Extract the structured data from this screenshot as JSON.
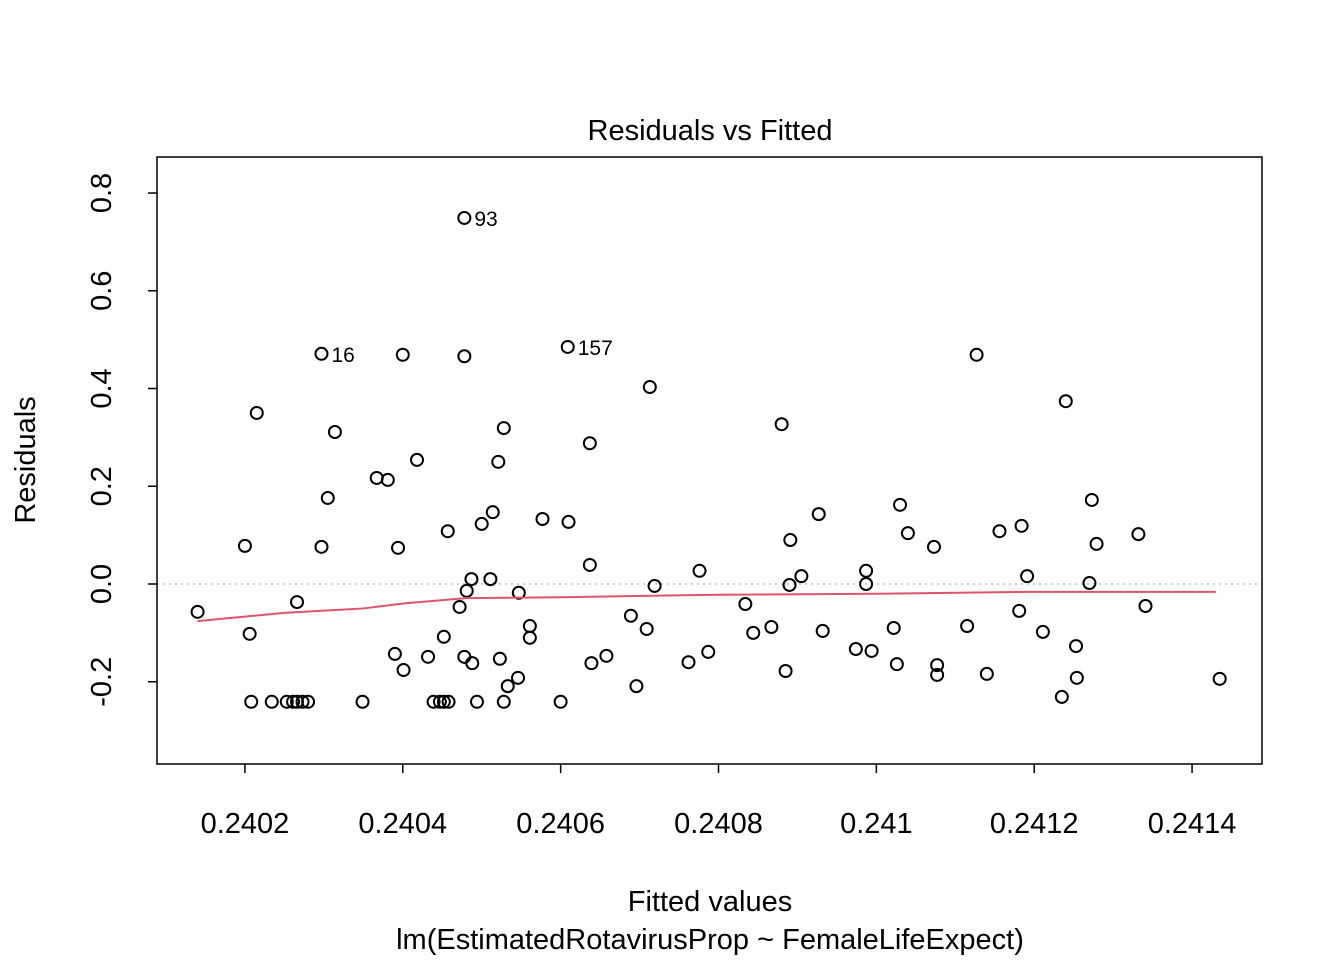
{
  "chart_data": {
    "type": "scatter",
    "title": "Residuals vs Fitted",
    "xlabel": "Fitted values",
    "subtitle": "lm(EstimatedRotavirusProp ~ FemaleLifeExpect)",
    "ylabel": "Residuals",
    "xlim": [
      0.2400886,
      0.2414886
    ],
    "ylim": [
      -0.3683,
      0.8737
    ],
    "xticks": [
      0.2402,
      0.2404,
      0.2406,
      0.2408,
      0.241,
      0.2412,
      0.2414
    ],
    "yticks": [
      -0.2,
      {
        "value": 0,
        "label": "0.0"
      },
      0.2,
      0.4,
      0.6,
      0.8
    ],
    "hline": 0,
    "hline_color": "#bebebe",
    "series": [
      {
        "type": "scatter",
        "color": "#000000",
        "x": [
          0.24014,
          0.2402,
          0.240206,
          0.240215,
          0.240208,
          0.240234,
          0.240253,
          0.240261,
          0.240266,
          0.240273,
          0.24028,
          0.240266,
          0.240297,
          0.240297,
          0.240305,
          0.240314,
          0.240349,
          0.240367,
          0.240381,
          0.24039,
          0.240394,
          0.2404,
          0.240401,
          0.240418,
          0.240432,
          0.240439,
          0.240447,
          0.240452,
          0.240458,
          0.240452,
          0.240457,
          0.240472,
          0.240478,
          0.240478,
          0.240478,
          0.240481,
          0.240487,
          0.240488,
          0.240494,
          0.2405,
          0.240511,
          0.240514,
          0.240521,
          0.240523,
          0.240528,
          0.240528,
          0.240533,
          0.240546,
          0.240547,
          0.240561,
          0.240561,
          0.240577,
          0.2406,
          0.240609,
          0.24061,
          0.240637,
          0.240637,
          0.240639,
          0.240658,
          0.240689,
          0.240696,
          0.240709,
          0.240713,
          0.240719,
          0.240762,
          0.240776,
          0.240787,
          0.240834,
          0.240844,
          0.240867,
          0.24088,
          0.240885,
          0.24089,
          0.240891,
          0.240905,
          0.240927,
          0.240932,
          0.240974,
          0.240987,
          0.240987,
          0.240994,
          0.241022,
          0.241026,
          0.24103,
          0.24104,
          0.241073,
          0.241077,
          0.241077,
          0.241115,
          0.241127,
          0.24114,
          0.241156,
          0.241181,
          0.241184,
          0.241191,
          0.241211,
          0.241235,
          0.24124,
          0.241253,
          0.241254,
          0.24127,
          0.241273,
          0.241279,
          0.241332,
          0.241341,
          0.241435
        ],
        "values": [
          -0.057,
          0.078,
          -0.102,
          0.35,
          -0.241,
          -0.241,
          -0.241,
          -0.241,
          -0.241,
          -0.241,
          -0.241,
          -0.037,
          0.471,
          0.076,
          0.176,
          0.311,
          -0.241,
          0.217,
          0.213,
          -0.143,
          0.074,
          0.469,
          -0.176,
          0.254,
          -0.149,
          -0.241,
          -0.241,
          -0.241,
          -0.241,
          -0.108,
          0.108,
          -0.047,
          0.749,
          0.466,
          -0.149,
          -0.014,
          0.01,
          -0.162,
          -0.241,
          0.123,
          0.01,
          0.147,
          0.25,
          -0.153,
          0.319,
          -0.241,
          -0.209,
          -0.192,
          -0.018,
          -0.086,
          -0.11,
          0.133,
          -0.241,
          0.485,
          0.127,
          0.288,
          0.039,
          -0.162,
          -0.147,
          -0.065,
          -0.209,
          -0.092,
          0.403,
          -0.004,
          -0.16,
          0.027,
          -0.139,
          -0.041,
          -0.1,
          -0.088,
          0.327,
          -0.178,
          -0.002,
          0.09,
          0.016,
          0.143,
          -0.096,
          -0.133,
          0.027,
          0,
          -0.137,
          -0.09,
          -0.164,
          0.162,
          0.104,
          0.076,
          -0.166,
          -0.186,
          -0.086,
          0.469,
          -0.184,
          0.108,
          -0.055,
          0.119,
          0.016,
          -0.098,
          -0.231,
          0.374,
          -0.127,
          -0.192,
          0.002,
          0.172,
          0.082,
          0.102,
          -0.045,
          -0.194
        ],
        "point_labels": [
          null,
          null,
          null,
          null,
          null,
          null,
          null,
          null,
          null,
          null,
          null,
          null,
          "16",
          null,
          null,
          null,
          null,
          null,
          null,
          null,
          null,
          null,
          null,
          null,
          null,
          null,
          null,
          null,
          null,
          null,
          null,
          null,
          "93",
          null,
          null,
          null,
          null,
          null,
          null,
          null,
          null,
          null,
          null,
          null,
          null,
          null,
          null,
          null,
          null,
          null,
          null,
          null,
          null,
          "157",
          null,
          null,
          null,
          null,
          null,
          null,
          null,
          null,
          null,
          null,
          null,
          null,
          null,
          null,
          null,
          null,
          null,
          null,
          null,
          null,
          null,
          null,
          null,
          null,
          null,
          null,
          null,
          null,
          null,
          null,
          null,
          null,
          null,
          null,
          null,
          null,
          null,
          null,
          null,
          null,
          null,
          null,
          null,
          null,
          null,
          null,
          null,
          null,
          null,
          null,
          null,
          null
        ]
      },
      {
        "type": "line",
        "color": "#DF536B",
        "x": [
          0.24014,
          0.24025,
          0.24035,
          0.2404,
          0.24048,
          0.2406,
          0.2408,
          0.241,
          0.2412,
          0.24143
        ],
        "values": [
          -0.076,
          -0.059,
          -0.05,
          -0.04,
          -0.029,
          -0.027,
          -0.022,
          -0.02,
          -0.016,
          -0.016
        ]
      }
    ]
  }
}
